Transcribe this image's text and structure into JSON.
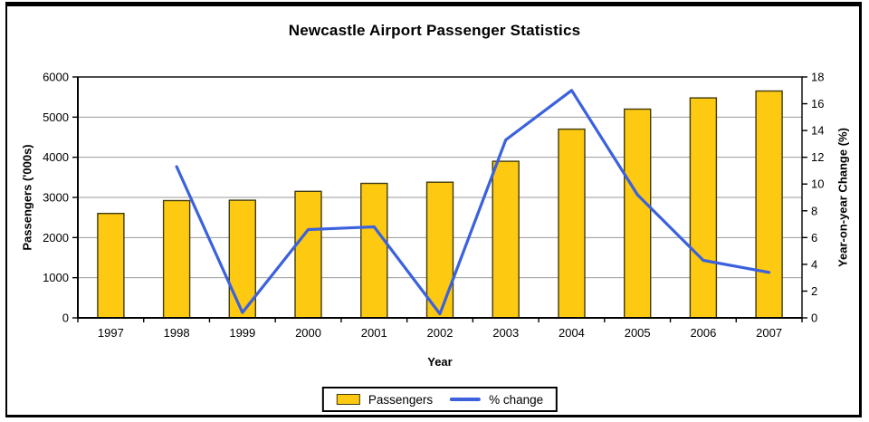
{
  "frame": {
    "background": "#ffffff",
    "border_color": "#000000"
  },
  "chart_data": {
    "type": "combo",
    "title": "Newcastle Airport Passenger Statistics",
    "categories": [
      "1997",
      "1998",
      "1999",
      "2000",
      "2001",
      "2002",
      "2003",
      "2004",
      "2005",
      "2006",
      "2007"
    ],
    "series": [
      {
        "name": "Passengers",
        "type": "bar",
        "axis": "left",
        "values": [
          2600,
          2920,
          2930,
          3150,
          3350,
          3380,
          3900,
          4700,
          5200,
          5480,
          5650
        ]
      },
      {
        "name": "% change",
        "type": "line",
        "axis": "right",
        "values": [
          null,
          11.3,
          0.4,
          6.6,
          6.8,
          0.3,
          13.3,
          17.0,
          9.2,
          4.3,
          3.4
        ]
      }
    ],
    "xlabel": "Year",
    "left_axis": {
      "label": "Passengers ('000s)",
      "min": 0,
      "max": 6000,
      "step": 1000
    },
    "right_axis": {
      "label": "Year-on-year Change (%)",
      "min": 0,
      "max": 18,
      "step": 2
    },
    "grid": "horizontal",
    "legend_position": "bottom-center",
    "colors": {
      "bar_fill": "#fdc911",
      "bar_stroke": "#403a10",
      "line": "#3b61dd",
      "grid": "#9a9a9a",
      "axis": "#000000",
      "text": "#000000"
    }
  },
  "legend": {
    "items": [
      {
        "label": "Passengers",
        "marker": "bar-swatch"
      },
      {
        "label": "% change",
        "marker": "line-swatch"
      }
    ]
  }
}
